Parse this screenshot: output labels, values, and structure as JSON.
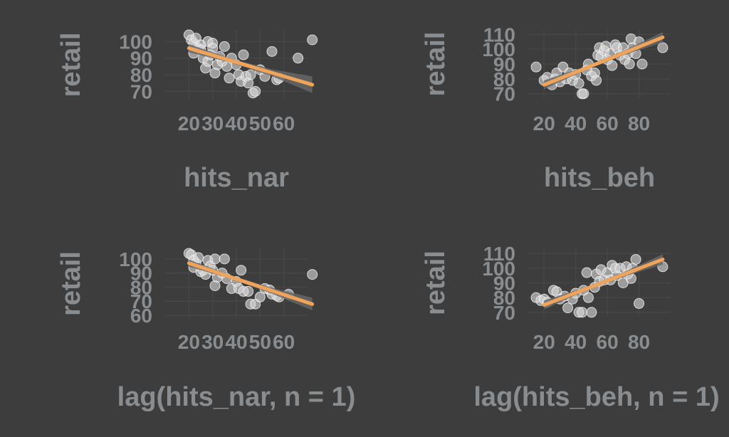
{
  "chart_data": [
    {
      "type": "scatter",
      "xlabel": "hits_nar",
      "ylabel": "retail",
      "xlim": [
        10,
        70
      ],
      "ylim": [
        65,
        107
      ],
      "xticks": [
        20,
        30,
        40,
        50,
        60
      ],
      "yticks": [
        70,
        80,
        90,
        100
      ],
      "x": [
        20,
        21,
        22,
        22,
        23,
        24,
        25,
        25,
        26,
        27,
        28,
        28,
        29,
        30,
        30,
        31,
        32,
        33,
        34,
        35,
        36,
        37,
        38,
        40,
        41,
        42,
        43,
        44,
        45,
        46,
        47,
        48,
        50,
        52,
        55,
        57,
        58,
        66,
        72
      ],
      "y": [
        104,
        101,
        93,
        99,
        102,
        96,
        98,
        95,
        90,
        84,
        88,
        100,
        92,
        99,
        96,
        81,
        86,
        91,
        88,
        97,
        85,
        78,
        90,
        86,
        80,
        76,
        92,
        79,
        75,
        80,
        69,
        70,
        83,
        79,
        94,
        77,
        78,
        90,
        101
      ],
      "fit": {
        "x": [
          20,
          72
        ],
        "y": [
          96,
          74
        ]
      },
      "ribbon_halfwidth": [
        2.5,
        1.2,
        2.0,
        5.0
      ]
    },
    {
      "type": "scatter",
      "xlabel": "hits_beh",
      "ylabel": "retail",
      "xlim": [
        10,
        100
      ],
      "ylim": [
        67,
        113
      ],
      "xticks": [
        20,
        40,
        60,
        80
      ],
      "yticks": [
        70,
        80,
        90,
        100,
        110
      ],
      "x": [
        15,
        20,
        22,
        25,
        27,
        28,
        30,
        32,
        34,
        36,
        38,
        40,
        42,
        44,
        45,
        47,
        48,
        50,
        52,
        53,
        54,
        55,
        56,
        58,
        59,
        60,
        62,
        63,
        65,
        66,
        68,
        70,
        71,
        73,
        74,
        75,
        76,
        78,
        80,
        82,
        95
      ],
      "y": [
        88,
        79,
        81,
        76,
        80,
        84,
        78,
        88,
        80,
        84,
        79,
        83,
        77,
        70,
        70,
        86,
        90,
        82,
        84,
        79,
        96,
        101,
        95,
        99,
        102,
        93,
        97,
        89,
        103,
        101,
        96,
        101,
        93,
        97,
        90,
        107,
        101,
        97,
        105,
        90,
        101
      ],
      "fit": {
        "x": [
          20,
          95
        ],
        "y": [
          76,
          108
        ]
      },
      "ribbon_halfwidth": [
        3.0,
        1.2,
        1.5,
        3.5
      ]
    },
    {
      "type": "scatter",
      "xlabel": "lag(hits_nar, n = 1)",
      "ylabel": "retail",
      "xlim": [
        10,
        70
      ],
      "ylim": [
        58,
        107
      ],
      "xticks": [
        20,
        30,
        40,
        50,
        60
      ],
      "yticks": [
        60,
        70,
        80,
        90,
        100
      ],
      "x": [
        20,
        21,
        22,
        22,
        23,
        24,
        25,
        26,
        27,
        28,
        29,
        30,
        31,
        31,
        32,
        34,
        35,
        36,
        38,
        40,
        41,
        42,
        43,
        45,
        46,
        48,
        50,
        52,
        54,
        55,
        57,
        58,
        62,
        72
      ],
      "y": [
        104,
        103,
        94,
        99,
        97,
        101,
        91,
        92,
        89,
        99,
        95,
        92,
        81,
        100,
        87,
        90,
        100,
        86,
        79,
        84,
        79,
        92,
        77,
        77,
        68,
        68,
        73,
        79,
        78,
        75,
        74,
        73,
        75,
        89
      ],
      "fit": {
        "x": [
          20,
          72
        ],
        "y": [
          97,
          68
        ]
      },
      "ribbon_halfwidth": [
        2.5,
        1.2,
        2.0,
        4.5
      ]
    },
    {
      "type": "scatter",
      "xlabel": "lag(hits_beh, n = 1)",
      "ylabel": "retail",
      "xlim": [
        10,
        100
      ],
      "ylim": [
        67,
        113
      ],
      "xticks": [
        20,
        40,
        60,
        80
      ],
      "yticks": [
        70,
        80,
        90,
        100,
        110
      ],
      "x": [
        15,
        18,
        20,
        22,
        26,
        28,
        30,
        33,
        35,
        38,
        40,
        42,
        44,
        45,
        47,
        48,
        50,
        52,
        53,
        55,
        56,
        58,
        60,
        62,
        63,
        65,
        66,
        68,
        70,
        72,
        73,
        75,
        76,
        78,
        80,
        95
      ],
      "y": [
        80,
        78,
        79,
        77,
        85,
        84,
        79,
        81,
        73,
        79,
        83,
        70,
        70,
        85,
        97,
        80,
        70,
        87,
        96,
        91,
        99,
        92,
        97,
        92,
        102,
        100,
        95,
        100,
        90,
        101,
        96,
        93,
        100,
        106,
        76,
        101
      ],
      "fit": {
        "x": [
          20,
          95
        ],
        "y": [
          75,
          106
        ]
      },
      "ribbon_halfwidth": [
        3.0,
        1.2,
        1.5,
        3.5
      ]
    }
  ],
  "colors": {
    "background": "#3d3d3d",
    "grid": "#464646",
    "point": "#dcdcdc",
    "ribbon": "#666666",
    "fit_line": "#f0a35a",
    "text": "#8a8d90"
  }
}
